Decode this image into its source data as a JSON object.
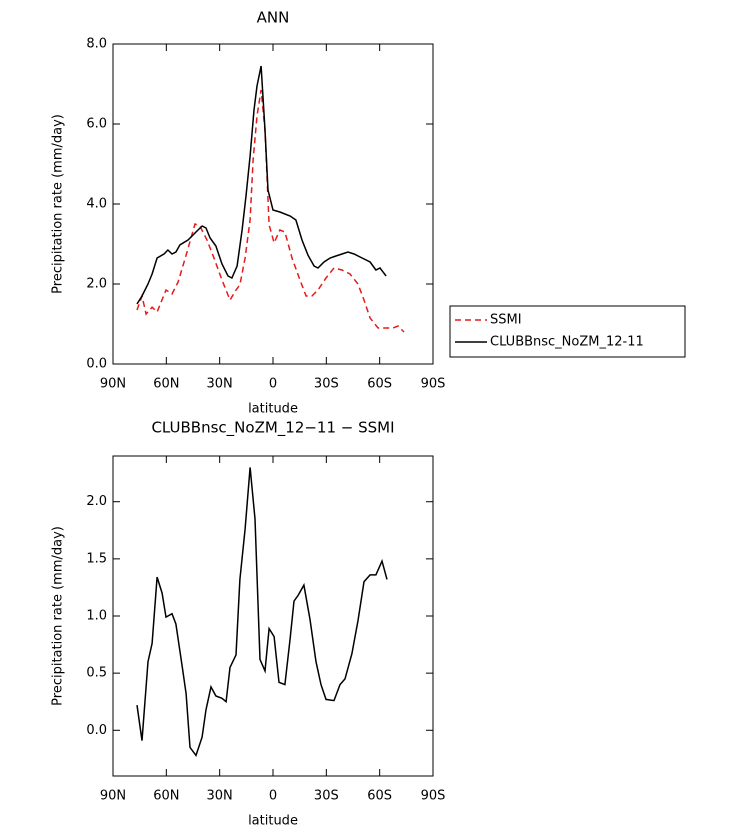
{
  "chart_data": [
    {
      "type": "line",
      "title": "ANN",
      "xlabel": "latitude",
      "ylabel": "Precipitation rate (mm/day)",
      "xlim": [
        90,
        -90
      ],
      "xticks": [
        {
          "value": 90,
          "label": "90N"
        },
        {
          "value": 60,
          "label": "60N"
        },
        {
          "value": 30,
          "label": "30N"
        },
        0,
        {
          "value": -30,
          "label": "30S"
        },
        {
          "value": -60,
          "label": "60S"
        },
        {
          "value": -90,
          "label": "90S"
        }
      ],
      "ylim": [
        0,
        8
      ],
      "yticks": [
        {
          "value": 0,
          "label": "0.0"
        },
        {
          "value": 2,
          "label": "2.0"
        },
        {
          "value": 4,
          "label": "4.0"
        },
        {
          "value": 6,
          "label": "6.0"
        },
        {
          "value": 8,
          "label": "8.0"
        }
      ],
      "legend": "right",
      "series": [
        {
          "name": "SSMI",
          "color": "#e41a1c",
          "linestyle": "dashed",
          "x": [
            76.5,
            73.7,
            71.4,
            68,
            65.2,
            60.2,
            56.8,
            53.4,
            48.9,
            43.9,
            41.1,
            37.1,
            33.2,
            28.7,
            24.2,
            20.8,
            18.6,
            15.7,
            12.9,
            11.2,
            9.0,
            6.7,
            4.5,
            2.2,
            -0.6,
            -3.9,
            -6.7,
            -10.7,
            -15.2,
            -18.6,
            -21.9,
            -25.3,
            -29.8,
            -34.3,
            -38.8,
            -43.3,
            -47.8,
            -51.2,
            -54.6,
            -59.1,
            -63.6,
            -67.5,
            -70.3,
            -73.7
          ],
          "values": [
            1.35,
            1.7,
            1.25,
            1.42,
            1.3,
            1.85,
            1.75,
            2.05,
            2.72,
            3.5,
            3.45,
            3.1,
            2.65,
            2.1,
            1.6,
            1.85,
            1.98,
            2.65,
            3.6,
            5.1,
            6.2,
            6.85,
            5.85,
            3.48,
            3.03,
            3.35,
            3.3,
            2.65,
            2.1,
            1.7,
            1.7,
            1.85,
            2.15,
            2.4,
            2.35,
            2.25,
            2.0,
            1.6,
            1.15,
            0.9,
            0.9,
            0.9,
            0.95,
            0.8
          ]
        },
        {
          "name": "CLUBBnsc_NoZM_12-11",
          "color": "#000000",
          "linestyle": "solid",
          "x": [
            76.5,
            73.7,
            70.3,
            68,
            65.2,
            61.3,
            59.1,
            56.8,
            54.6,
            52.3,
            47.8,
            43.3,
            39.9,
            37.7,
            35.4,
            32.1,
            28.7,
            25.3,
            23.1,
            20.2,
            17.4,
            15.2,
            12.9,
            10.7,
            9.0,
            6.7,
            4.5,
            2.8,
            0,
            -3.9,
            -9.6,
            -12.9,
            -16.3,
            -19.7,
            -23.1,
            -25.3,
            -28.7,
            -32.1,
            -35.4,
            -38.8,
            -42.2,
            -45.6,
            -50.1,
            -54.6,
            -57.9,
            -60.2,
            -63.6
          ],
          "values": [
            1.5,
            1.7,
            2.0,
            2.25,
            2.65,
            2.75,
            2.85,
            2.75,
            2.8,
            2.98,
            3.1,
            3.3,
            3.45,
            3.4,
            3.15,
            2.95,
            2.5,
            2.2,
            2.15,
            2.45,
            3.35,
            4.2,
            5.2,
            6.35,
            6.95,
            7.45,
            5.85,
            4.35,
            3.85,
            3.8,
            3.7,
            3.6,
            3.1,
            2.72,
            2.45,
            2.4,
            2.55,
            2.65,
            2.7,
            2.75,
            2.8,
            2.75,
            2.65,
            2.55,
            2.35,
            2.4,
            2.2
          ]
        }
      ]
    },
    {
      "type": "line",
      "title": "CLUBBnsc_NoZM_12−11 − SSMI",
      "xlabel": "latitude",
      "ylabel": "Precipitation rate (mm/day)",
      "xlim": [
        90,
        -90
      ],
      "xticks": [
        {
          "value": 90,
          "label": "90N"
        },
        {
          "value": 60,
          "label": "60N"
        },
        {
          "value": 30,
          "label": "30N"
        },
        0,
        {
          "value": -30,
          "label": "30S"
        },
        {
          "value": -60,
          "label": "60S"
        },
        {
          "value": -90,
          "label": "90S"
        }
      ],
      "ylim": [
        -0.4,
        2.4
      ],
      "yticks": [
        {
          "value": 0,
          "label": "0.0"
        },
        0.5,
        {
          "value": 1,
          "label": "1.0"
        },
        1.5,
        {
          "value": 2,
          "label": "2.0"
        }
      ],
      "series": [
        {
          "color": "#000000",
          "linestyle": "solid",
          "x": [
            76.5,
            73.7,
            70.3,
            68,
            65.2,
            62.4,
            60.2,
            56.8,
            54.6,
            51.2,
            48.9,
            46.7,
            43.3,
            39.9,
            37.7,
            34.9,
            32.1,
            28.7,
            26.4,
            24.2,
            20.8,
            18.6,
            15.7,
            12.9,
            10.1,
            7.3,
            4.5,
            2.2,
            -0.6,
            -3.4,
            -6.7,
            -9.6,
            -11.8,
            -14.1,
            -17.4,
            -20.8,
            -24.2,
            -27.0,
            -29.8,
            -34.3,
            -37.7,
            -40.5,
            -44.4,
            -47.8,
            -51.2,
            -54.6,
            -57.9,
            -61.3,
            -64.1
          ],
          "values": [
            0.22,
            -0.09,
            0.6,
            0.76,
            1.34,
            1.2,
            0.99,
            1.02,
            0.93,
            0.57,
            0.32,
            -0.15,
            -0.22,
            -0.06,
            0.18,
            0.38,
            0.3,
            0.28,
            0.25,
            0.55,
            0.66,
            1.32,
            1.76,
            2.3,
            1.85,
            0.62,
            0.52,
            0.89,
            0.82,
            0.42,
            0.4,
            0.8,
            1.13,
            1.18,
            1.27,
            0.97,
            0.6,
            0.4,
            0.27,
            0.26,
            0.4,
            0.45,
            0.67,
            0.96,
            1.3,
            1.36,
            1.36,
            1.48,
            1.32
          ]
        }
      ]
    }
  ]
}
